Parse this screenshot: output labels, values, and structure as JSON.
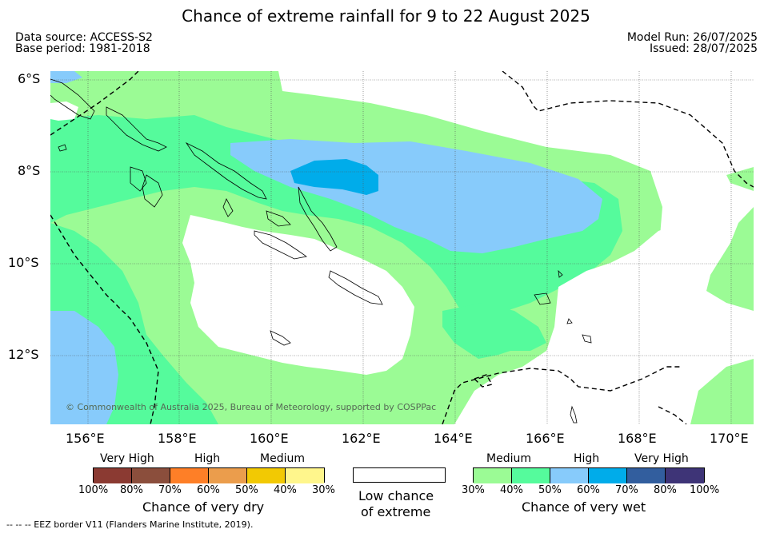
{
  "title": "Chance of extreme rainfall for 9 to 22 August 2025",
  "data_source": "Data source: ACCESS-S2",
  "base_period": "Base period: 1981-2018",
  "model_run": "Model Run: 26/07/2025",
  "issued": "Issued: 28/07/2025",
  "map": {
    "lat_labels": [
      "6°S",
      "8°S",
      "10°S",
      "12°S"
    ],
    "lon_labels": [
      "156°E",
      "158°E",
      "160°E",
      "162°E",
      "164°E",
      "166°E",
      "168°E",
      "170°E"
    ],
    "copyright": "© Commonwealth of Australia 2025, Bureau of Meteorology, supported by COSPPac",
    "colors": {
      "wet_medium": "#9bfb95",
      "wet_high": "#55fb9c",
      "wet_high2": "#87cbfb",
      "wet_very_high": "#00acea",
      "land_outline": "#000000",
      "eez_border": "#000000"
    }
  },
  "legend": {
    "dry": {
      "groups": [
        "Very High",
        "High",
        "Medium"
      ],
      "ticks": [
        "100%",
        "80%",
        "70%",
        "60%",
        "50%",
        "40%",
        "30%"
      ],
      "colors": [
        "#8b3a32",
        "#8b4e3c",
        "#fe7f27",
        "#eb9d4c",
        "#f2c903",
        "#fff68c"
      ],
      "title": "Chance of very dry"
    },
    "low": {
      "title_line1": "Low chance",
      "title_line2": "of extreme",
      "color": "#ffffff"
    },
    "wet": {
      "groups": [
        "Medium",
        "High",
        "Very High"
      ],
      "ticks": [
        "30%",
        "40%",
        "50%",
        "60%",
        "70%",
        "80%",
        "100%"
      ],
      "colors": [
        "#9bfb95",
        "#55fb9c",
        "#87cbfb",
        "#00acea",
        "#325e9e",
        "#3e3477"
      ],
      "title": "Chance of very wet"
    }
  },
  "footnote": "-- -- -- EEZ border V11 (Flanders Marine Institute, 2019)."
}
